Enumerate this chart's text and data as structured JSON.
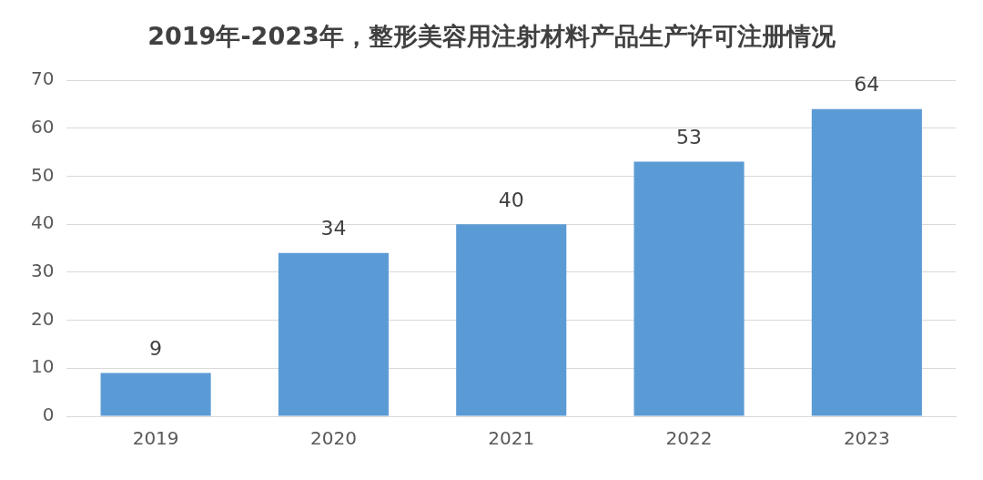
{
  "chart_data": {
    "type": "bar",
    "title": "2019年-2023年，整形美容用注射材料产品生产许可注册情况",
    "categories": [
      "2019",
      "2020",
      "2021",
      "2022",
      "2023"
    ],
    "values": [
      9,
      34,
      40,
      53,
      64
    ],
    "color": "#5b9bd5",
    "ylim": [
      0,
      70
    ],
    "yticks": [
      0,
      10,
      20,
      30,
      40,
      50,
      60,
      70
    ],
    "grid": "y",
    "data_labels": true
  }
}
